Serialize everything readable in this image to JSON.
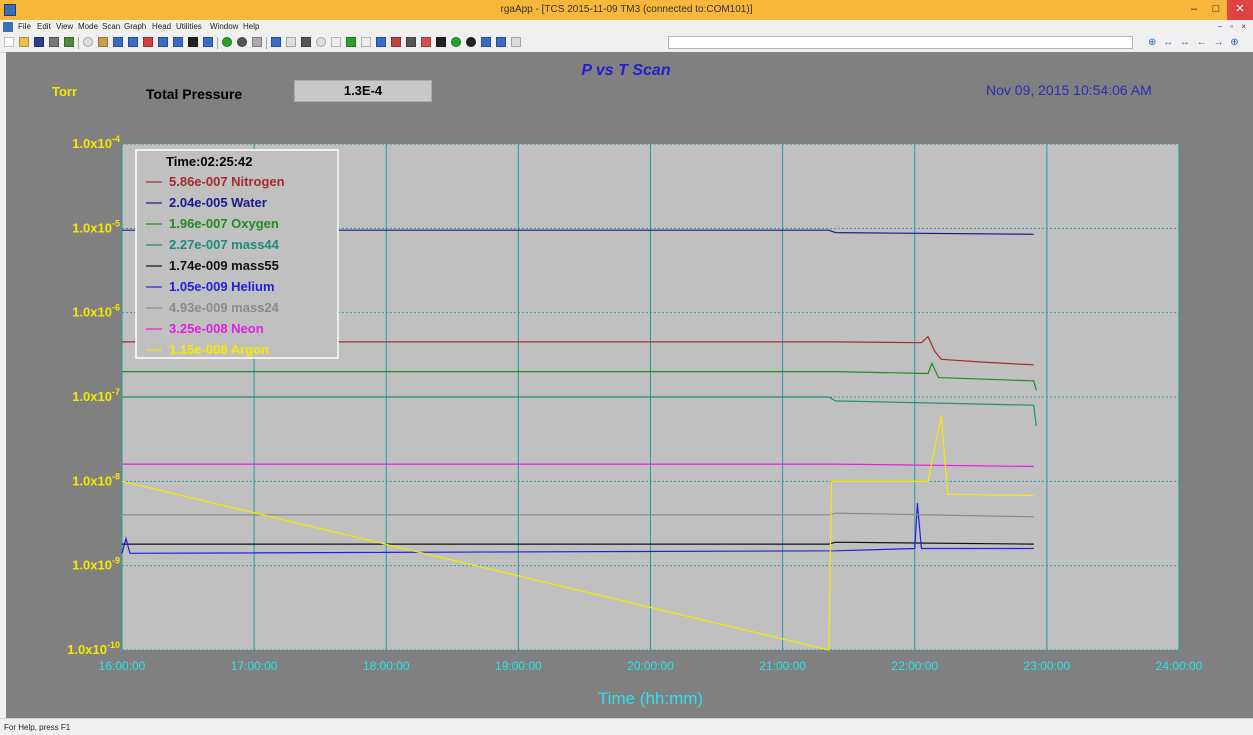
{
  "window": {
    "title": "rgaApp - [TCS 2015-11-09 TM3 (connected to:COM101)]",
    "min_glyph": "–",
    "max_glyph": "□",
    "close_glyph": "✕"
  },
  "menu": {
    "items": [
      "File",
      "Edit",
      "View",
      "Mode",
      "Scan",
      "Graph",
      "Head",
      "Utilities",
      "Window",
      "Help"
    ],
    "mdi_buttons": "– ▫ ×"
  },
  "toolbar": {
    "nav_arrows": "⊕ ↔ ↔ ← → ⊕"
  },
  "header": {
    "unit": "Torr",
    "total_pressure_label": "Total Pressure",
    "total_pressure_value": "1.3E-4",
    "datetime": "Nov 09, 2015  10:54:06 AM"
  },
  "status": {
    "text": "For Help, press F1"
  },
  "chart_data": {
    "type": "line",
    "title": "P vs T Scan",
    "xlabel": "Time (hh:mm)",
    "ylabel": "",
    "y_scale": "log",
    "ylim": [
      1e-10,
      0.0001
    ],
    "x_ticks": [
      "16:00:00",
      "17:00:00",
      "18:00:00",
      "19:00:00",
      "20:00:00",
      "21:00:00",
      "22:00:00",
      "23:00:00",
      "24:00:00"
    ],
    "y_ticks": [
      {
        "value": 0.0001,
        "base": "1.0x10",
        "exp": "-4"
      },
      {
        "value": 1e-05,
        "base": "1.0x10",
        "exp": "-5"
      },
      {
        "value": 1e-06,
        "base": "1.0x10",
        "exp": "-6"
      },
      {
        "value": 1e-07,
        "base": "1.0x10",
        "exp": "-7"
      },
      {
        "value": 1e-08,
        "base": "1.0x10",
        "exp": "-8"
      },
      {
        "value": 1e-09,
        "base": "1.0x10",
        "exp": "-9"
      },
      {
        "value": 1e-10,
        "base": "1.0x10",
        "exp": "-10"
      }
    ],
    "xlim": [
      16.0,
      24.0
    ],
    "grid": true,
    "legend_position": "top-left",
    "cursor_label": "Time:02:25:42",
    "colors": {
      "plot_bg": "#c0c0c0",
      "grid": "#2a9b9b",
      "tick_text": "#f5e900",
      "x_tick_text": "#2ee0f0",
      "title": "#2020d0"
    },
    "series": [
      {
        "name": "Nitrogen",
        "reading": "5.86e-007",
        "color": "#a52a2a",
        "points": [
          [
            16.0,
            4.5e-07
          ],
          [
            21.4,
            4.5e-07
          ],
          [
            22.05,
            4.4e-07
          ],
          [
            22.1,
            5.2e-07
          ],
          [
            22.15,
            3.5e-07
          ],
          [
            22.2,
            2.8e-07
          ],
          [
            22.5,
            2.6e-07
          ],
          [
            22.9,
            2.4e-07
          ]
        ]
      },
      {
        "name": "Water",
        "reading": "2.04e-005",
        "color": "#1a1a8c",
        "points": [
          [
            16.0,
            9.5e-06
          ],
          [
            21.35,
            9.5e-06
          ],
          [
            21.4,
            8.9e-06
          ],
          [
            22.9,
            8.5e-06
          ]
        ]
      },
      {
        "name": "Oxygen",
        "reading": "1.96e-007",
        "color": "#1e8c1e",
        "points": [
          [
            16.0,
            2e-07
          ],
          [
            21.4,
            2e-07
          ],
          [
            22.1,
            1.9e-07
          ],
          [
            22.13,
            2.5e-07
          ],
          [
            22.18,
            1.7e-07
          ],
          [
            22.9,
            1.55e-07
          ],
          [
            22.92,
            1.2e-07
          ]
        ]
      },
      {
        "name": "mass44",
        "reading": "2.27e-007",
        "color": "#1e8c7a",
        "points": [
          [
            16.0,
            1e-07
          ],
          [
            21.35,
            1e-07
          ],
          [
            21.4,
            9e-08
          ],
          [
            22.9,
            8e-08
          ],
          [
            22.92,
            4.5e-08
          ]
        ]
      },
      {
        "name": "mass55",
        "reading": "1.74e-009",
        "color": "#111111",
        "points": [
          [
            16.0,
            1.8e-09
          ],
          [
            21.35,
            1.8e-09
          ],
          [
            21.4,
            1.9e-09
          ],
          [
            22.9,
            1.8e-09
          ]
        ]
      },
      {
        "name": "Helium",
        "reading": "1.05e-009",
        "color": "#2020e0",
        "points": [
          [
            16.0,
            1.4e-09
          ],
          [
            16.03,
            2.1e-09
          ],
          [
            16.06,
            1.4e-09
          ],
          [
            21.4,
            1.5e-09
          ],
          [
            22.0,
            1.6e-09
          ],
          [
            22.02,
            5.5e-09
          ],
          [
            22.05,
            1.6e-09
          ],
          [
            22.9,
            1.6e-09
          ]
        ]
      },
      {
        "name": "mass24",
        "reading": "4.93e-009",
        "color": "#8a8a8a",
        "points": [
          [
            16.0,
            4e-09
          ],
          [
            21.35,
            4e-09
          ],
          [
            21.4,
            4.2e-09
          ],
          [
            22.9,
            3.8e-09
          ]
        ]
      },
      {
        "name": "Neon",
        "reading": "3.25e-008",
        "color": "#e020e0",
        "points": [
          [
            16.0,
            1.6e-08
          ],
          [
            21.4,
            1.6e-08
          ],
          [
            22.9,
            1.5e-08
          ]
        ]
      },
      {
        "name": "Argon",
        "reading": "1.15e-008",
        "color": "#f5e900",
        "points": [
          [
            16.0,
            1e-08
          ],
          [
            21.35,
            1e-10
          ],
          [
            21.37,
            1e-08
          ],
          [
            22.1,
            1e-08
          ],
          [
            22.2,
            6e-08
          ],
          [
            22.25,
            7e-09
          ],
          [
            22.9,
            6.8e-09
          ]
        ]
      }
    ]
  }
}
